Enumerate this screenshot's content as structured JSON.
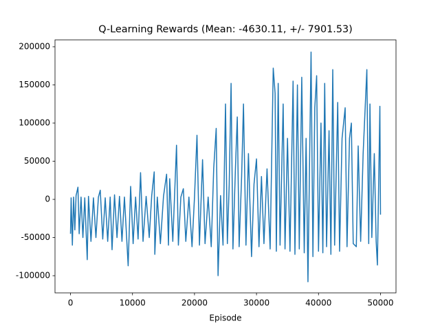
{
  "chart_data": {
    "type": "line",
    "title": "Q-Learning Rewards (Mean: -4630.11, +/- 7901.53)",
    "x_label": "Episode",
    "color": "#1f77b4",
    "x": [
      0,
      100,
      300,
      500,
      700,
      900,
      1200,
      1400,
      1700,
      2000,
      2300,
      2700,
      2900,
      3300,
      3700,
      4100,
      4500,
      4800,
      5200,
      5600,
      6000,
      6400,
      6700,
      7100,
      7500,
      7900,
      8300,
      8700,
      9300,
      9700,
      10100,
      10500,
      10900,
      11300,
      11700,
      12200,
      12700,
      13100,
      13500,
      13600,
      14000,
      14500,
      15000,
      15500,
      15800,
      16000,
      16500,
      17100,
      17400,
      17800,
      18200,
      18600,
      19100,
      19600,
      20000,
      20400,
      20800,
      21300,
      21700,
      22200,
      22700,
      23100,
      23500,
      23800,
      24200,
      24600,
      25000,
      25300,
      25600,
      25900,
      26200,
      26600,
      26900,
      27200,
      27600,
      27900,
      28300,
      28700,
      29200,
      29600,
      30000,
      30400,
      30800,
      31200,
      31700,
      32200,
      32700,
      33000,
      33200,
      33500,
      33800,
      34300,
      34600,
      35000,
      35400,
      35900,
      36200,
      36600,
      36900,
      37300,
      37700,
      38000,
      38300,
      38800,
      39100,
      39400,
      39700,
      40000,
      40400,
      40700,
      41000,
      41300,
      41700,
      42000,
      42300,
      42600,
      43100,
      43400,
      43800,
      44300,
      44600,
      45000,
      45300,
      45600,
      46100,
      46400,
      46800,
      47200,
      47800,
      48100,
      48300,
      48600,
      49000,
      49300,
      49500,
      49900,
      50000
    ],
    "values": [
      -45000,
      2000,
      -60000,
      3000,
      -40000,
      5000,
      16000,
      -45000,
      3000,
      -50000,
      2000,
      -79000,
      4000,
      -55000,
      2000,
      -50000,
      3000,
      12000,
      -52000,
      2000,
      -55000,
      3000,
      -66000,
      6000,
      -50000,
      4000,
      -55000,
      3000,
      -87000,
      17000,
      -58000,
      3000,
      -52000,
      35000,
      -55000,
      4000,
      -50000,
      5000,
      36000,
      -72000,
      3000,
      -58000,
      4000,
      33000,
      -60000,
      27000,
      -55000,
      71000,
      -60000,
      3000,
      14000,
      -55000,
      3000,
      -62000,
      3000,
      84000,
      -60000,
      52000,
      -58000,
      3000,
      -62000,
      41000,
      93000,
      -100000,
      5000,
      -60000,
      125000,
      -58000,
      20000,
      152000,
      -65000,
      40000,
      108000,
      -62000,
      30000,
      125000,
      -60000,
      60000,
      -75000,
      20000,
      53000,
      -62000,
      30000,
      -58000,
      40000,
      -65000,
      172000,
      139000,
      -68000,
      152000,
      -60000,
      125000,
      -65000,
      80000,
      -68000,
      155000,
      -72000,
      150000,
      -65000,
      160000,
      -70000,
      80000,
      -108000,
      193000,
      -75000,
      120000,
      162000,
      -68000,
      100000,
      -70000,
      152000,
      -62000,
      90000,
      -72000,
      170000,
      -60000,
      127000,
      -68000,
      80000,
      120000,
      -62000,
      80000,
      100000,
      -58000,
      -62000,
      70000,
      -55000,
      60000,
      170000,
      -58000,
      125000,
      -50000,
      60000,
      -55000,
      -86000,
      122000,
      -20000
    ],
    "xlim": [
      -2500,
      52500
    ],
    "ylim": [
      -122500,
      209000
    ],
    "xticks": [
      0,
      10000,
      20000,
      30000,
      40000,
      50000
    ],
    "yticks": [
      -100000,
      -50000,
      0,
      50000,
      100000,
      150000,
      200000
    ]
  }
}
